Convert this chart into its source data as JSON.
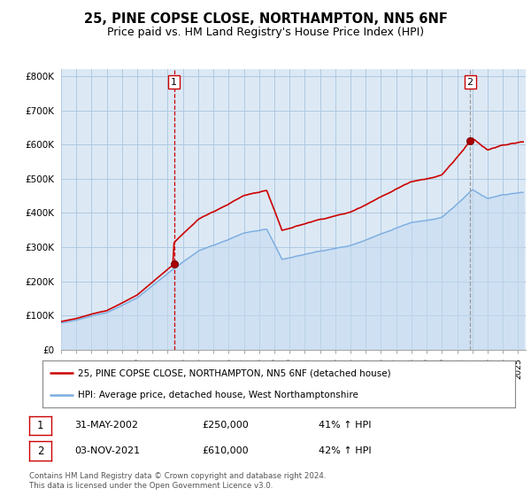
{
  "title": "25, PINE COPSE CLOSE, NORTHAMPTON, NN5 6NF",
  "subtitle": "Price paid vs. HM Land Registry's House Price Index (HPI)",
  "title_fontsize": 10.5,
  "subtitle_fontsize": 9,
  "ylim": [
    0,
    820000
  ],
  "yticks": [
    0,
    100000,
    200000,
    300000,
    400000,
    500000,
    600000,
    700000,
    800000
  ],
  "ytick_labels": [
    "£0",
    "£100K",
    "£200K",
    "£300K",
    "£400K",
    "£500K",
    "£600K",
    "£700K",
    "£800K"
  ],
  "xlim_start": 1995,
  "xlim_end": 2025.5,
  "purchase1_date": 2002.41,
  "purchase1_price": 250000,
  "purchase2_date": 2021.85,
  "purchase2_price": 610000,
  "legend_entry1": "25, PINE COPSE CLOSE, NORTHAMPTON, NN5 6NF (detached house)",
  "legend_entry2": "HPI: Average price, detached house, West Northamptonshire",
  "annotation1_date": "31-MAY-2002",
  "annotation1_price": "£250,000",
  "annotation1_hpi": "41% ↑ HPI",
  "annotation2_date": "03-NOV-2021",
  "annotation2_price": "£610,000",
  "annotation2_hpi": "42% ↑ HPI",
  "footer": "Contains HM Land Registry data © Crown copyright and database right 2024.\nThis data is licensed under the Open Government Licence v3.0.",
  "line_color_property": "#cc0000",
  "line_color_hpi": "#7aace0",
  "vline1_color": "#cc0000",
  "vline2_color": "#999999",
  "bg_fill_color": "#dce9f5",
  "background_color": "#ffffff",
  "grid_color": "#b0c8e0"
}
